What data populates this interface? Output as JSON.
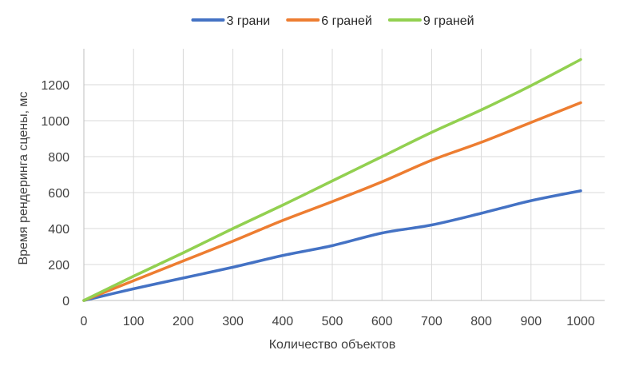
{
  "chart_data": {
    "type": "line",
    "xlabel": "Количество объектов",
    "ylabel": "Время рендеринга сцены, мс",
    "xlim": [
      0,
      1000
    ],
    "ylim": [
      0,
      1400
    ],
    "x_ticks": [
      0,
      100,
      200,
      300,
      400,
      500,
      600,
      700,
      800,
      900,
      1000
    ],
    "y_ticks": [
      0,
      200,
      400,
      600,
      800,
      1000,
      1200
    ],
    "grid": true,
    "legend_position": "top",
    "x": [
      0,
      100,
      200,
      300,
      400,
      500,
      600,
      700,
      800,
      900,
      1000
    ],
    "series": [
      {
        "name": "3 грани",
        "color": "#4472c4",
        "values": [
          0,
          65,
          125,
          185,
          250,
          305,
          375,
          420,
          485,
          555,
          610
        ]
      },
      {
        "name": "6 граней",
        "color": "#ed7d31",
        "values": [
          0,
          110,
          220,
          330,
          445,
          550,
          660,
          780,
          880,
          990,
          1100
        ]
      },
      {
        "name": "9 граней",
        "color": "#92d050",
        "values": [
          0,
          135,
          265,
          400,
          530,
          665,
          800,
          935,
          1060,
          1195,
          1340
        ]
      }
    ]
  }
}
